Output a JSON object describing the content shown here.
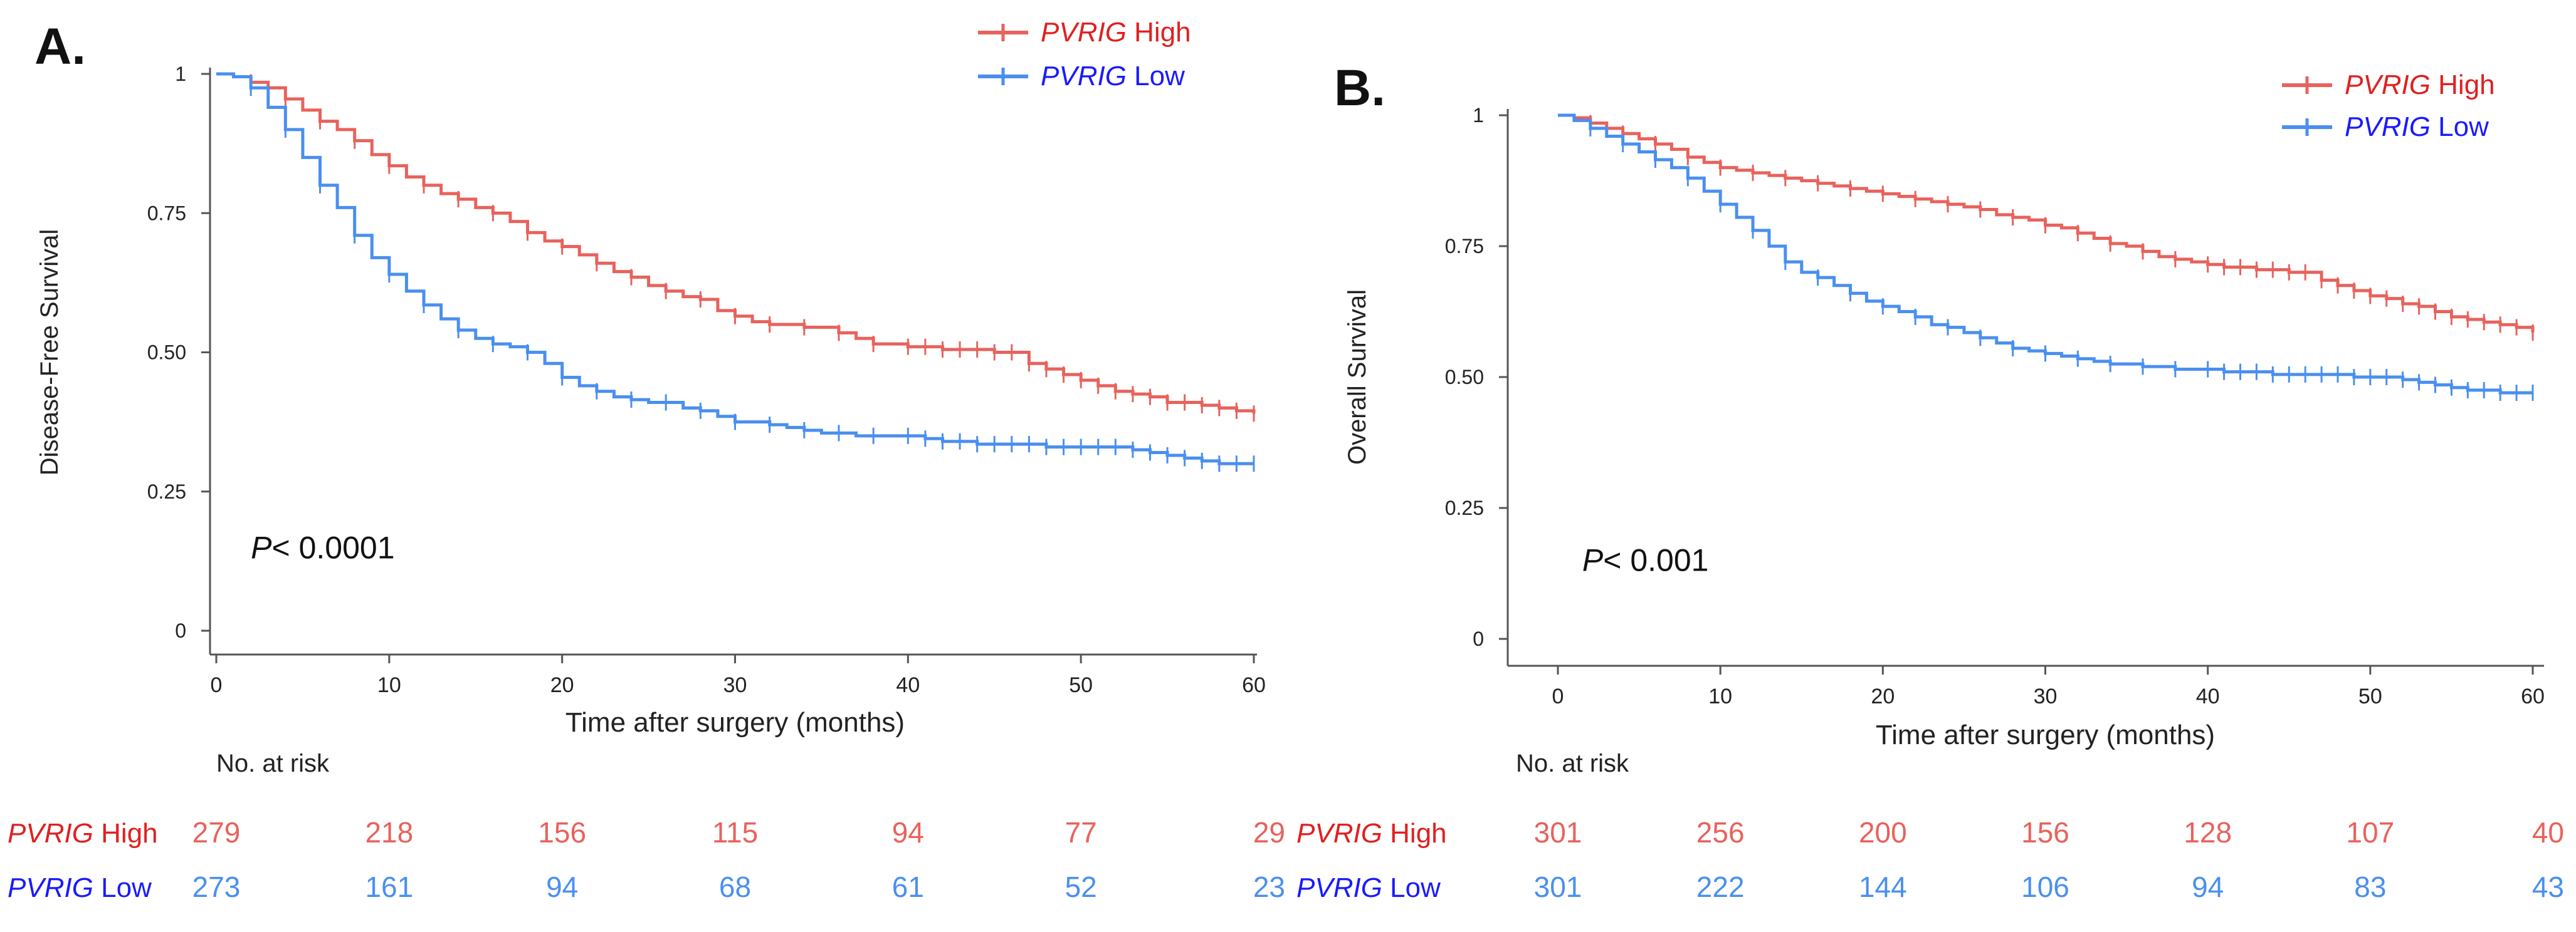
{
  "colors": {
    "high": "#e8625c",
    "low": "#4a8ff0",
    "axis": "#555555",
    "text": "#111111"
  },
  "icons": {
    "legend_marker": "line-with-tick-icon"
  },
  "chart_data": [
    {
      "panel_label": "A.",
      "type": "line",
      "title": "",
      "ylabel": "Disease-Free Survival",
      "xlabel": "Time after surgery (months)",
      "xlim": [
        0,
        60
      ],
      "ylim": [
        0,
        1
      ],
      "xticks": [
        0,
        10,
        20,
        30,
        40,
        50,
        60
      ],
      "xtick_labels": [
        "0",
        "10",
        "20",
        "30",
        "40",
        "50",
        "60"
      ],
      "yticks": [
        0,
        0.25,
        0.5,
        0.75,
        1
      ],
      "ytick_labels": [
        "0",
        "0.25",
        "0.50",
        "0.75",
        "1"
      ],
      "grid": false,
      "legend_position": "top-right",
      "annotation": {
        "italic": "P",
        "text": "< 0.0001",
        "x": 2,
        "y": 0.13
      },
      "series": [
        {
          "key": "high",
          "name_italic": "PVRIG",
          "name_rest": " High",
          "x": [
            0,
            1,
            2,
            3,
            4,
            5,
            6,
            7,
            8,
            9,
            10,
            11,
            12,
            13,
            14,
            15,
            16,
            17,
            18,
            19,
            20,
            21,
            22,
            23,
            24,
            25,
            26,
            27,
            28,
            29,
            30,
            31,
            32,
            33,
            34,
            35,
            36,
            37,
            38,
            39,
            40,
            41,
            42,
            43,
            44,
            45,
            46,
            47,
            48,
            49,
            50,
            51,
            52,
            53,
            54,
            55,
            56,
            57,
            58,
            59,
            60
          ],
          "y": [
            1.0,
            0.995,
            0.985,
            0.975,
            0.955,
            0.935,
            0.915,
            0.9,
            0.88,
            0.855,
            0.835,
            0.815,
            0.8,
            0.785,
            0.775,
            0.76,
            0.75,
            0.735,
            0.715,
            0.7,
            0.69,
            0.675,
            0.66,
            0.645,
            0.635,
            0.62,
            0.61,
            0.6,
            0.595,
            0.575,
            0.565,
            0.555,
            0.55,
            0.55,
            0.545,
            0.545,
            0.535,
            0.525,
            0.515,
            0.515,
            0.51,
            0.51,
            0.505,
            0.505,
            0.505,
            0.5,
            0.5,
            0.48,
            0.47,
            0.46,
            0.45,
            0.44,
            0.43,
            0.425,
            0.42,
            0.41,
            0.41,
            0.405,
            0.4,
            0.395,
            0.39
          ]
        },
        {
          "key": "low",
          "name_italic": "PVRIG",
          "name_rest": " Low",
          "x": [
            0,
            1,
            2,
            3,
            4,
            5,
            6,
            7,
            8,
            9,
            10,
            11,
            12,
            13,
            14,
            15,
            16,
            17,
            18,
            19,
            20,
            21,
            22,
            23,
            24,
            25,
            26,
            27,
            28,
            29,
            30,
            31,
            32,
            33,
            34,
            35,
            36,
            37,
            38,
            39,
            40,
            41,
            42,
            43,
            44,
            45,
            46,
            47,
            48,
            49,
            50,
            51,
            52,
            53,
            54,
            55,
            56,
            57,
            58,
            59,
            60
          ],
          "y": [
            1.0,
            0.995,
            0.975,
            0.94,
            0.9,
            0.85,
            0.8,
            0.76,
            0.71,
            0.67,
            0.64,
            0.61,
            0.585,
            0.56,
            0.54,
            0.525,
            0.515,
            0.51,
            0.5,
            0.48,
            0.455,
            0.44,
            0.43,
            0.42,
            0.415,
            0.41,
            0.41,
            0.4,
            0.395,
            0.385,
            0.375,
            0.375,
            0.37,
            0.365,
            0.36,
            0.355,
            0.355,
            0.35,
            0.35,
            0.35,
            0.35,
            0.345,
            0.34,
            0.34,
            0.335,
            0.335,
            0.335,
            0.335,
            0.33,
            0.33,
            0.33,
            0.33,
            0.33,
            0.325,
            0.32,
            0.315,
            0.31,
            0.305,
            0.3,
            0.3,
            0.3
          ]
        }
      ],
      "risk_table": {
        "title": "No. at risk",
        "times": [
          0,
          10,
          20,
          30,
          40,
          50,
          60
        ],
        "rows": [
          {
            "key": "high",
            "label_italic": "PVRIG",
            "label_rest": " High",
            "values": [
              "279",
              "218",
              "156",
              "115",
              "94",
              "77",
              "29"
            ]
          },
          {
            "key": "low",
            "label_italic": "PVRIG",
            "label_rest": " Low",
            "values": [
              "273",
              "161",
              "94",
              "68",
              "61",
              "52",
              "23"
            ]
          }
        ]
      }
    },
    {
      "panel_label": "B.",
      "type": "line",
      "title": "",
      "ylabel": "Overall Survival",
      "xlabel": "Time after surgery (months)",
      "xlim": [
        0,
        60
      ],
      "ylim": [
        0,
        1
      ],
      "xticks": [
        0,
        10,
        20,
        30,
        40,
        50,
        60
      ],
      "xtick_labels": [
        "0",
        "10",
        "20",
        "30",
        "40",
        "50",
        "60"
      ],
      "yticks": [
        0,
        0.25,
        0.5,
        0.75,
        1
      ],
      "ytick_labels": [
        "0",
        "0.25",
        "0.50",
        "0.75",
        "1"
      ],
      "grid": false,
      "legend_position": "top-right",
      "annotation": {
        "italic": "P",
        "text": "< 0.001",
        "x": 1.5,
        "y": 0.13
      },
      "series": [
        {
          "key": "high",
          "name_italic": "PVRIG",
          "name_rest": " High",
          "x": [
            0,
            1,
            2,
            3,
            4,
            5,
            6,
            7,
            8,
            9,
            10,
            11,
            12,
            13,
            14,
            15,
            16,
            17,
            18,
            19,
            20,
            21,
            22,
            23,
            24,
            25,
            26,
            27,
            28,
            29,
            30,
            31,
            32,
            33,
            34,
            35,
            36,
            37,
            38,
            39,
            40,
            41,
            42,
            43,
            44,
            45,
            46,
            47,
            48,
            49,
            50,
            51,
            52,
            53,
            54,
            55,
            56,
            57,
            58,
            59,
            60
          ],
          "y": [
            1.0,
            0.995,
            0.985,
            0.975,
            0.965,
            0.955,
            0.945,
            0.935,
            0.92,
            0.91,
            0.9,
            0.895,
            0.89,
            0.885,
            0.88,
            0.875,
            0.87,
            0.865,
            0.86,
            0.855,
            0.85,
            0.845,
            0.84,
            0.835,
            0.83,
            0.825,
            0.82,
            0.81,
            0.805,
            0.8,
            0.79,
            0.785,
            0.775,
            0.765,
            0.755,
            0.75,
            0.74,
            0.73,
            0.725,
            0.72,
            0.715,
            0.71,
            0.71,
            0.705,
            0.705,
            0.7,
            0.7,
            0.685,
            0.675,
            0.665,
            0.655,
            0.65,
            0.64,
            0.635,
            0.625,
            0.615,
            0.61,
            0.605,
            0.6,
            0.595,
            0.585
          ]
        },
        {
          "key": "low",
          "name_italic": "PVRIG",
          "name_rest": " Low",
          "x": [
            0,
            1,
            2,
            3,
            4,
            5,
            6,
            7,
            8,
            9,
            10,
            11,
            12,
            13,
            14,
            15,
            16,
            17,
            18,
            19,
            20,
            21,
            22,
            23,
            24,
            25,
            26,
            27,
            28,
            29,
            30,
            31,
            32,
            33,
            34,
            35,
            36,
            37,
            38,
            39,
            40,
            41,
            42,
            43,
            44,
            45,
            46,
            47,
            48,
            49,
            50,
            51,
            52,
            53,
            54,
            55,
            56,
            57,
            58,
            59,
            60
          ],
          "y": [
            1.0,
            0.99,
            0.975,
            0.96,
            0.945,
            0.93,
            0.915,
            0.9,
            0.88,
            0.855,
            0.83,
            0.805,
            0.78,
            0.75,
            0.72,
            0.7,
            0.69,
            0.675,
            0.66,
            0.645,
            0.635,
            0.625,
            0.615,
            0.6,
            0.595,
            0.585,
            0.575,
            0.565,
            0.555,
            0.55,
            0.545,
            0.54,
            0.535,
            0.53,
            0.525,
            0.525,
            0.52,
            0.52,
            0.515,
            0.515,
            0.515,
            0.51,
            0.51,
            0.51,
            0.505,
            0.505,
            0.505,
            0.505,
            0.505,
            0.5,
            0.5,
            0.5,
            0.495,
            0.49,
            0.485,
            0.48,
            0.475,
            0.475,
            0.47,
            0.47,
            0.47
          ]
        }
      ],
      "risk_table": {
        "title": "No. at risk",
        "times": [
          0,
          10,
          20,
          30,
          40,
          50,
          60
        ],
        "rows": [
          {
            "key": "high",
            "label_italic": "PVRIG",
            "label_rest": " High",
            "values": [
              "301",
              "256",
              "200",
              "156",
              "128",
              "107",
              "40"
            ]
          },
          {
            "key": "low",
            "label_italic": "PVRIG",
            "label_rest": " Low",
            "values": [
              "301",
              "222",
              "144",
              "106",
              "94",
              "83",
              "43"
            ]
          }
        ]
      }
    }
  ]
}
